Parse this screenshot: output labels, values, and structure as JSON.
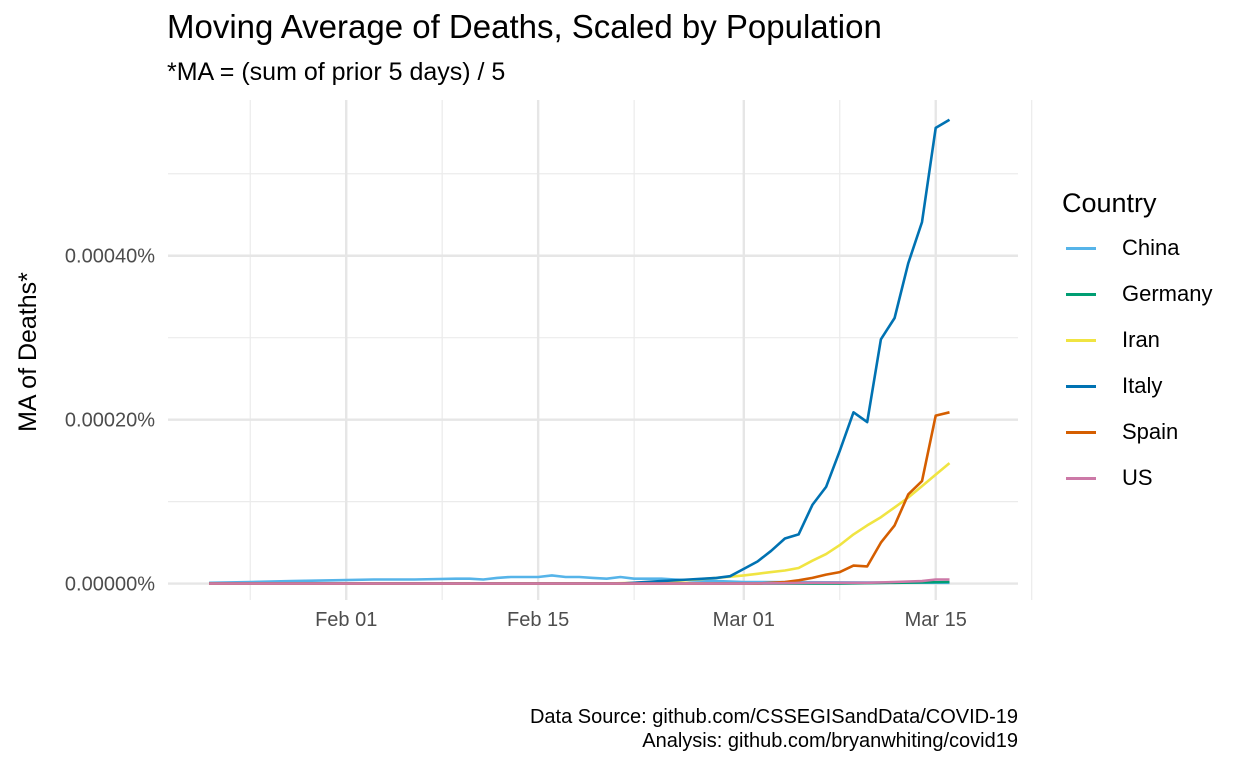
{
  "chart_data": {
    "type": "line",
    "title": "Moving Average of Deaths, Scaled by Population",
    "subtitle": "*MA = (sum of prior 5 days) / 5",
    "xlabel": "",
    "ylabel": "MA of Deaths*",
    "caption": [
      "Data Source: github.com/CSSEGISandData/COVID-19",
      "Analysis: github.com/bryanwhiting/covid19"
    ],
    "x_range": [
      "2020-01-19",
      "2020-03-21"
    ],
    "ylim": [
      -2e-05,
      0.00059
    ],
    "y_unit": "%",
    "grid": true,
    "legend": {
      "title": "Country",
      "position": "right"
    },
    "xticks": [
      {
        "date": "2020-02-01",
        "label": "Feb 01"
      },
      {
        "date": "2020-02-15",
        "label": "Feb 15"
      },
      {
        "date": "2020-03-01",
        "label": "Mar 01"
      },
      {
        "date": "2020-03-15",
        "label": "Mar 15"
      }
    ],
    "yticks": [
      {
        "value": 0,
        "label": "0.00000%"
      },
      {
        "value": 0.0002,
        "label": "0.00020%"
      },
      {
        "value": 0.0004,
        "label": "0.00040%"
      }
    ],
    "series": [
      {
        "name": "China",
        "color": "#56B4E9",
        "x": [
          "2020-01-22",
          "2020-01-25",
          "2020-01-28",
          "2020-01-31",
          "2020-02-03",
          "2020-02-06",
          "2020-02-09",
          "2020-02-10",
          "2020-02-11",
          "2020-02-12",
          "2020-02-13",
          "2020-02-14",
          "2020-02-15",
          "2020-02-16",
          "2020-02-17",
          "2020-02-18",
          "2020-02-19",
          "2020-02-20",
          "2020-02-21",
          "2020-02-22",
          "2020-02-23",
          "2020-02-24",
          "2020-02-25",
          "2020-02-26",
          "2020-02-28",
          "2020-03-01",
          "2020-03-16"
        ],
        "values": [
          1e-06,
          2e-06,
          3e-06,
          4e-06,
          5e-06,
          5e-06,
          6e-06,
          6e-06,
          5e-06,
          7e-06,
          8e-06,
          8e-06,
          8e-06,
          1e-05,
          8e-06,
          8e-06,
          7e-06,
          6e-06,
          8e-06,
          6e-06,
          6e-06,
          6e-06,
          5e-06,
          4e-06,
          3e-06,
          2e-06,
          1e-06
        ]
      },
      {
        "name": "Germany",
        "color": "#009E73",
        "x": [
          "2020-01-22",
          "2020-03-08",
          "2020-03-12",
          "2020-03-16"
        ],
        "values": [
          0,
          0,
          1e-06,
          2e-06
        ]
      },
      {
        "name": "Iran",
        "color": "#F0E442",
        "x": [
          "2020-01-22",
          "2020-02-20",
          "2020-02-24",
          "2020-02-28",
          "2020-03-01",
          "2020-03-02",
          "2020-03-03",
          "2020-03-04",
          "2020-03-05",
          "2020-03-06",
          "2020-03-07",
          "2020-03-08",
          "2020-03-09",
          "2020-03-10",
          "2020-03-11",
          "2020-03-12",
          "2020-03-13",
          "2020-03-14",
          "2020-03-15",
          "2020-03-16"
        ],
        "values": [
          0,
          0,
          2e-06,
          7e-06,
          1e-05,
          1.2e-05,
          1.4e-05,
          1.6e-05,
          1.9e-05,
          2.8e-05,
          3.6e-05,
          4.7e-05,
          6e-05,
          7.1e-05,
          8.1e-05,
          9.3e-05,
          0.000105,
          0.000119,
          0.000133,
          0.000147
        ]
      },
      {
        "name": "Italy",
        "color": "#0072B2",
        "x": [
          "2020-01-22",
          "2020-02-21",
          "2020-02-24",
          "2020-02-26",
          "2020-02-28",
          "2020-02-29",
          "2020-03-01",
          "2020-03-02",
          "2020-03-03",
          "2020-03-04",
          "2020-03-05",
          "2020-03-06",
          "2020-03-07",
          "2020-03-08",
          "2020-03-09",
          "2020-03-10",
          "2020-03-11",
          "2020-03-12",
          "2020-03-13",
          "2020-03-14",
          "2020-03-15",
          "2020-03-16"
        ],
        "values": [
          0,
          0,
          3e-06,
          5e-06,
          7e-06,
          9e-06,
          1.8e-05,
          2.7e-05,
          4e-05,
          5.5e-05,
          6e-05,
          9.6e-05,
          0.000118,
          0.000162,
          0.000209,
          0.000197,
          0.000298,
          0.000324,
          0.000391,
          0.000441,
          0.000556,
          0.000566
        ]
      },
      {
        "name": "Spain",
        "color": "#D55E00",
        "x": [
          "2020-01-22",
          "2020-03-02",
          "2020-03-04",
          "2020-03-05",
          "2020-03-06",
          "2020-03-07",
          "2020-03-08",
          "2020-03-09",
          "2020-03-10",
          "2020-03-11",
          "2020-03-12",
          "2020-03-13",
          "2020-03-14",
          "2020-03-15",
          "2020-03-16"
        ],
        "values": [
          0,
          0,
          2e-06,
          4e-06,
          7e-06,
          1.1e-05,
          1.4e-05,
          2.2e-05,
          2.1e-05,
          5e-05,
          7.1e-05,
          0.000109,
          0.000125,
          0.000205,
          0.000209
        ]
      },
      {
        "name": "US",
        "color": "#CC79A7",
        "x": [
          "2020-01-22",
          "2020-03-01",
          "2020-03-06",
          "2020-03-10",
          "2020-03-12",
          "2020-03-14",
          "2020-03-15",
          "2020-03-16"
        ],
        "values": [
          0,
          0,
          1e-06,
          1e-06,
          2e-06,
          3e-06,
          5e-06,
          5e-06
        ]
      }
    ]
  }
}
